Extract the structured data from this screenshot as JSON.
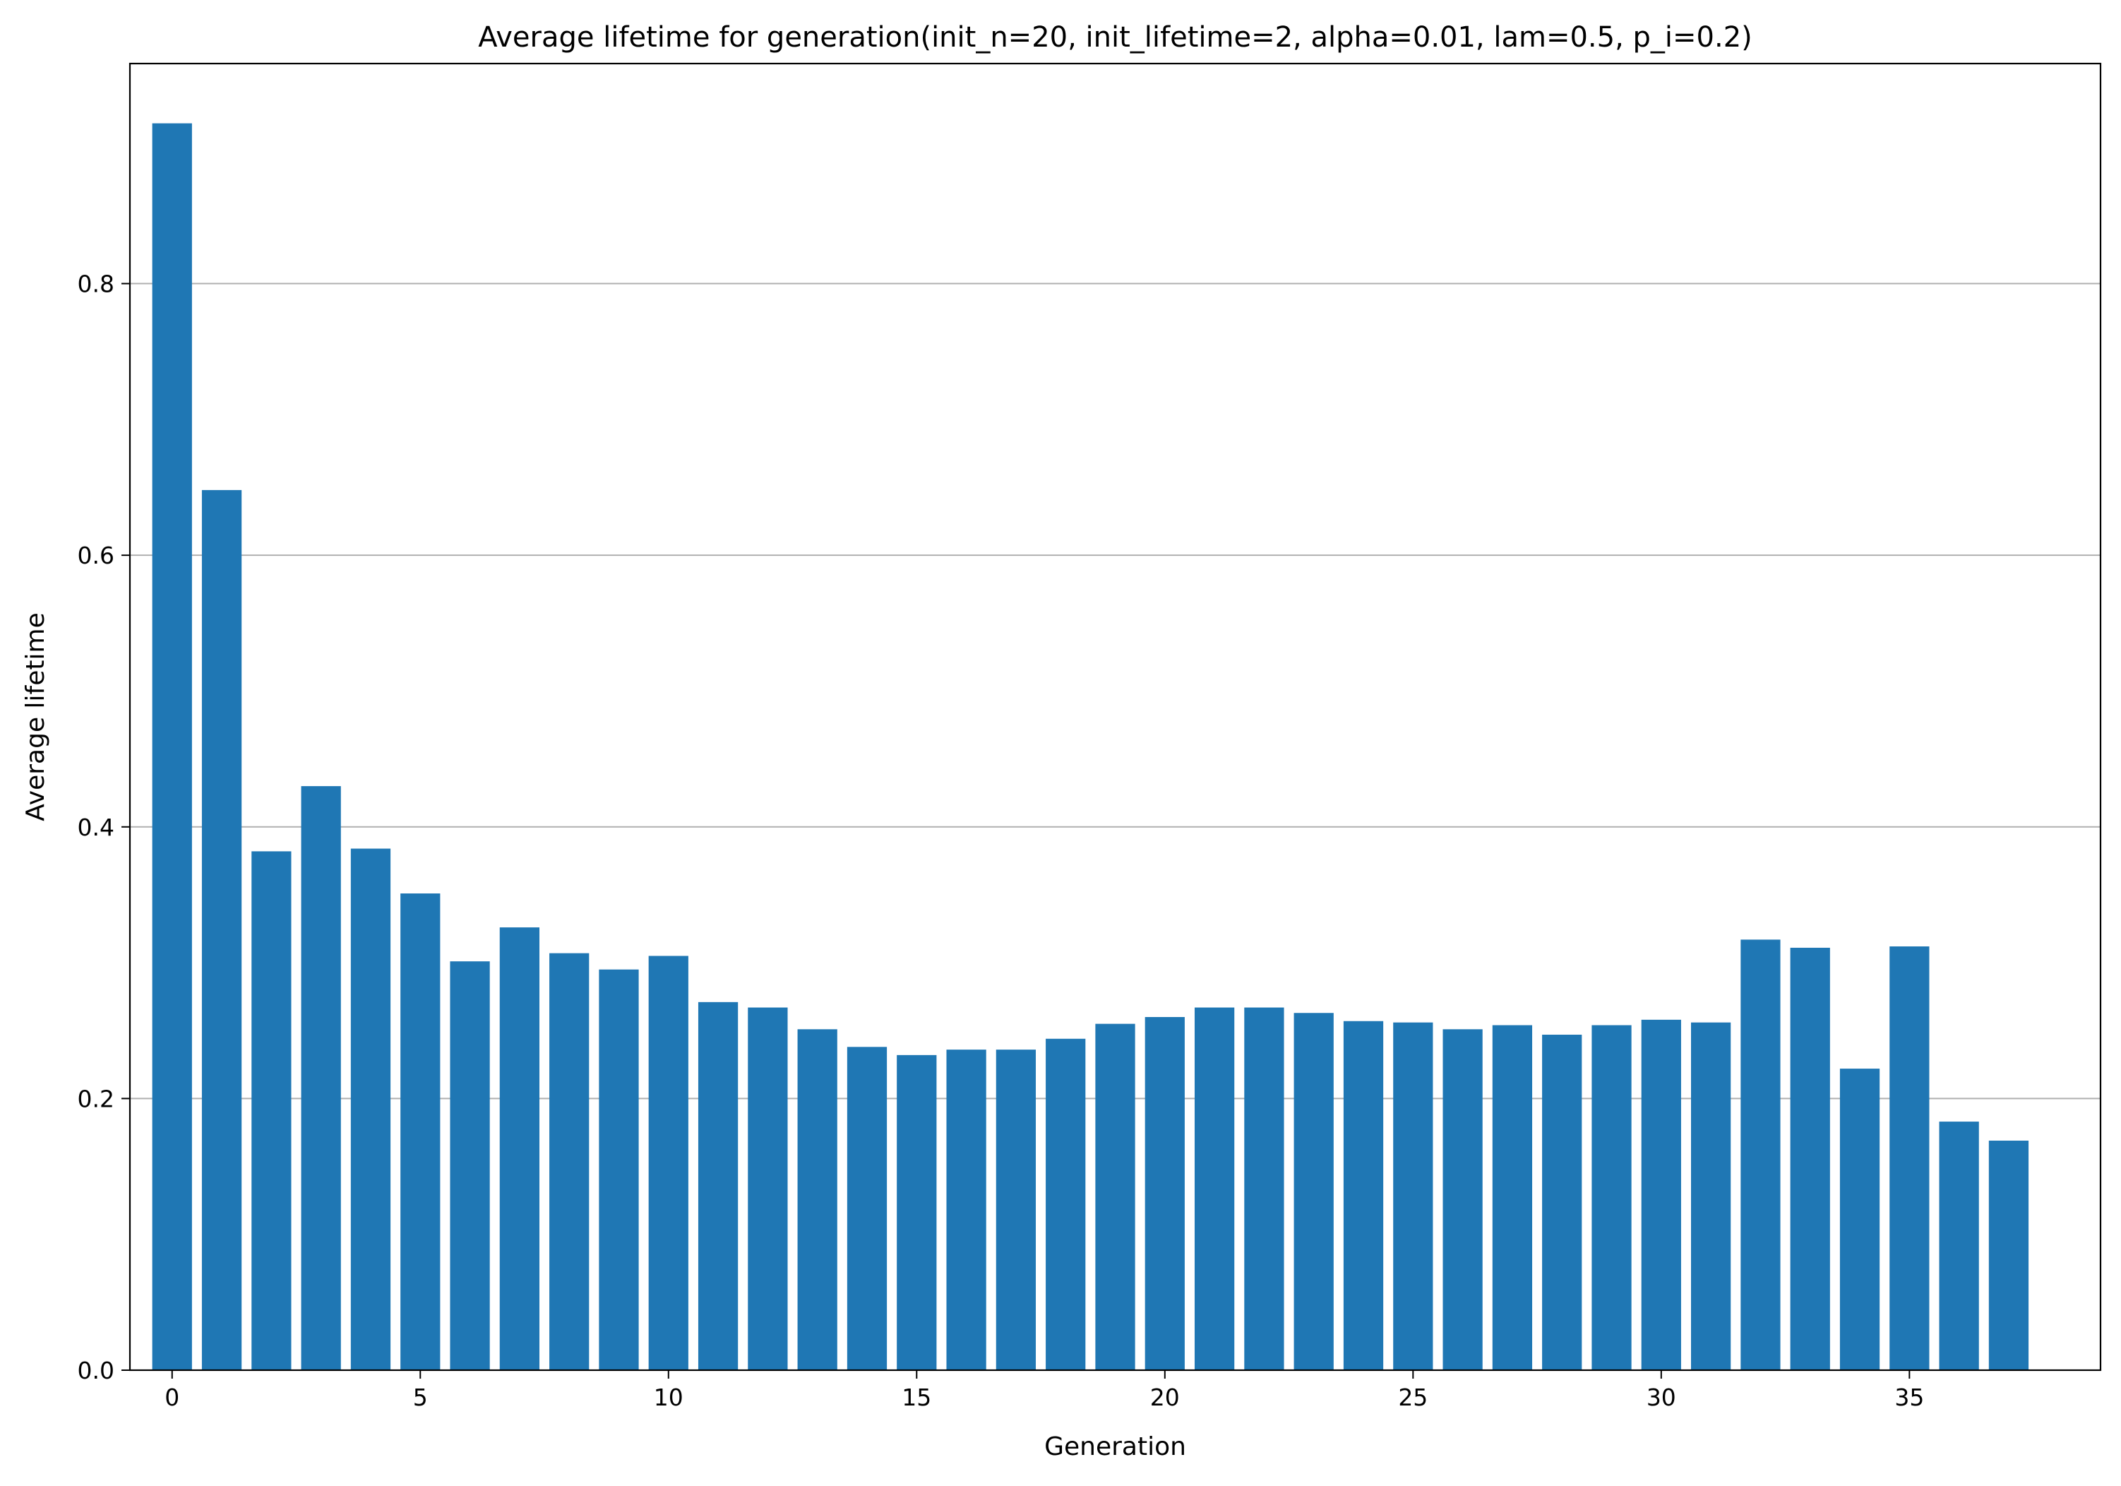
{
  "chart_data": {
    "type": "bar",
    "title": "Average lifetime for generation(init_n=20, init_lifetime=2, alpha=0.01, lam=0.5, p_i=0.2)",
    "xlabel": "Generation",
    "ylabel": "Average lifetime",
    "x": [
      0,
      1,
      2,
      3,
      4,
      5,
      6,
      7,
      8,
      9,
      10,
      11,
      12,
      13,
      14,
      15,
      16,
      17,
      18,
      19,
      20,
      21,
      22,
      23,
      24,
      25,
      26,
      27,
      28,
      29,
      30,
      31,
      32,
      33,
      34,
      35,
      36,
      37
    ],
    "values": [
      0.918,
      0.648,
      0.382,
      0.43,
      0.384,
      0.351,
      0.301,
      0.326,
      0.307,
      0.295,
      0.305,
      0.271,
      0.267,
      0.251,
      0.238,
      0.232,
      0.236,
      0.236,
      0.244,
      0.255,
      0.26,
      0.267,
      0.267,
      0.263,
      0.257,
      0.256,
      0.251,
      0.254,
      0.247,
      0.254,
      0.258,
      0.256,
      0.317,
      0.311,
      0.222,
      0.312,
      0.183,
      0.169
    ],
    "xlim": [
      -0.85,
      38.85
    ],
    "ylim": [
      0,
      0.962
    ],
    "xticks": [
      0,
      5,
      10,
      15,
      20,
      25,
      30,
      35
    ],
    "xtick_labels": [
      "0",
      "5",
      "10",
      "15",
      "20",
      "25",
      "30",
      "35"
    ],
    "yticks": [
      0,
      0.2,
      0.4,
      0.6,
      0.8
    ],
    "ytick_labels": [
      "0.0",
      "0.2",
      "0.4",
      "0.6",
      "0.8"
    ],
    "grid": "y",
    "bar_color": "#1f77b4",
    "grid_color": "#b0b0b0"
  }
}
